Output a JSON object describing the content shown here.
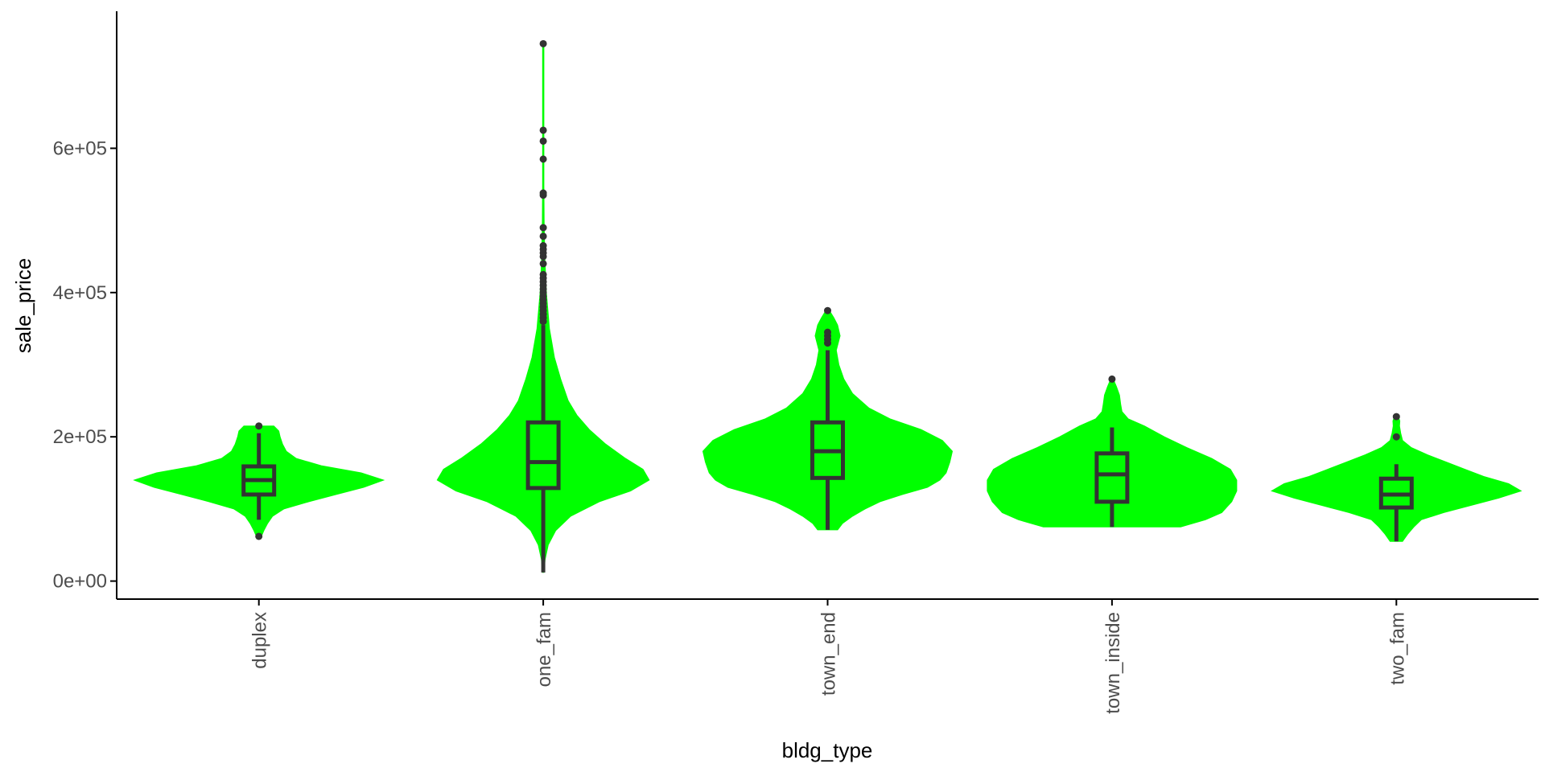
{
  "chart_data": {
    "type": "violin",
    "title": "",
    "xlabel": "bldg_type",
    "ylabel": "sale_price",
    "categories": [
      "duplex",
      "one_fam",
      "town_end",
      "town_inside",
      "two_fam"
    ],
    "y_ticks": [
      0,
      200000,
      400000,
      600000
    ],
    "y_tick_labels": [
      "0e+00",
      "2e+05",
      "4e+05",
      "6e+05"
    ],
    "ylim": [
      -25000,
      790000
    ],
    "grid": false,
    "legend": "none",
    "colors": {
      "violin_fill": "#00ff00",
      "box_stroke": "#333333",
      "outlier": "#333333",
      "axis": "#000000"
    },
    "violins": [
      {
        "category": "duplex",
        "min": 62000,
        "max": 215000,
        "profile": [
          [
            62000,
            0.02
          ],
          [
            70000,
            0.04
          ],
          [
            80000,
            0.07
          ],
          [
            90000,
            0.11
          ],
          [
            100000,
            0.2
          ],
          [
            110000,
            0.4
          ],
          [
            120000,
            0.62
          ],
          [
            130000,
            0.84
          ],
          [
            140000,
            1.0
          ],
          [
            150000,
            0.82
          ],
          [
            160000,
            0.5
          ],
          [
            170000,
            0.3
          ],
          [
            180000,
            0.22
          ],
          [
            190000,
            0.19
          ],
          [
            200000,
            0.17
          ],
          [
            208000,
            0.16
          ],
          [
            215000,
            0.12
          ]
        ],
        "box": {
          "q1": 120000,
          "median": 140000,
          "q3": 159000,
          "whisker_low": 85000,
          "whisker_high": 205000
        },
        "outliers": [
          62000,
          215000
        ]
      },
      {
        "category": "one_fam",
        "min": 12000,
        "max": 745000,
        "profile": [
          [
            12000,
            0.0
          ],
          [
            30000,
            0.015
          ],
          [
            50000,
            0.04
          ],
          [
            70000,
            0.1
          ],
          [
            90000,
            0.22
          ],
          [
            110000,
            0.45
          ],
          [
            125000,
            0.7
          ],
          [
            140000,
            0.85
          ],
          [
            155000,
            0.8
          ],
          [
            170000,
            0.66
          ],
          [
            190000,
            0.5
          ],
          [
            210000,
            0.37
          ],
          [
            230000,
            0.27
          ],
          [
            250000,
            0.2
          ],
          [
            280000,
            0.14
          ],
          [
            310000,
            0.09
          ],
          [
            350000,
            0.05
          ],
          [
            400000,
            0.025
          ],
          [
            450000,
            0.012
          ],
          [
            500000,
            0.007
          ],
          [
            550000,
            0.004
          ],
          [
            600000,
            0.002
          ],
          [
            650000,
            0.001
          ],
          [
            700000,
            0.0005
          ],
          [
            745000,
            0.0
          ]
        ],
        "box": {
          "q1": 129000,
          "median": 165000,
          "q3": 220000,
          "whisker_low": 12000,
          "whisker_high": 355000
        },
        "outliers": [
          360000,
          365000,
          370000,
          375000,
          380000,
          385000,
          390000,
          395000,
          400000,
          405000,
          410000,
          415000,
          420000,
          425000,
          440000,
          450000,
          455000,
          460000,
          465000,
          478000,
          490000,
          535000,
          538000,
          585000,
          610000,
          625000,
          745000
        ]
      },
      {
        "category": "town_end",
        "min": 71000,
        "max": 375000,
        "profile": [
          [
            71000,
            0.08
          ],
          [
            80000,
            0.12
          ],
          [
            90000,
            0.2
          ],
          [
            100000,
            0.3
          ],
          [
            110000,
            0.42
          ],
          [
            120000,
            0.6
          ],
          [
            130000,
            0.8
          ],
          [
            140000,
            0.9
          ],
          [
            150000,
            0.95
          ],
          [
            165000,
            0.98
          ],
          [
            180000,
            1.0
          ],
          [
            195000,
            0.92
          ],
          [
            210000,
            0.75
          ],
          [
            225000,
            0.5
          ],
          [
            240000,
            0.33
          ],
          [
            260000,
            0.2
          ],
          [
            280000,
            0.13
          ],
          [
            300000,
            0.09
          ],
          [
            320000,
            0.07
          ],
          [
            340000,
            0.1
          ],
          [
            355000,
            0.08
          ],
          [
            365000,
            0.05
          ],
          [
            375000,
            0.015
          ]
        ],
        "box": {
          "q1": 143000,
          "median": 180000,
          "q3": 220000,
          "whisker_low": 71000,
          "whisker_high": 320000
        },
        "outliers": [
          330000,
          335000,
          340000,
          345000,
          375000
        ]
      },
      {
        "category": "town_inside",
        "min": 75000,
        "max": 280000,
        "profile": [
          [
            75000,
            0.55
          ],
          [
            85000,
            0.75
          ],
          [
            95000,
            0.88
          ],
          [
            110000,
            0.96
          ],
          [
            125000,
            1.0
          ],
          [
            140000,
            1.0
          ],
          [
            155000,
            0.95
          ],
          [
            170000,
            0.8
          ],
          [
            185000,
            0.6
          ],
          [
            200000,
            0.42
          ],
          [
            215000,
            0.26
          ],
          [
            225000,
            0.13
          ],
          [
            235000,
            0.08
          ],
          [
            245000,
            0.07
          ],
          [
            258000,
            0.06
          ],
          [
            270000,
            0.035
          ],
          [
            280000,
            0.01
          ]
        ],
        "box": {
          "q1": 110000,
          "median": 148000,
          "q3": 177000,
          "whisker_low": 75000,
          "whisker_high": 213000
        },
        "outliers": [
          280000
        ]
      },
      {
        "category": "two_fam",
        "min": 55000,
        "max": 228000,
        "profile": [
          [
            55000,
            0.05
          ],
          [
            65000,
            0.09
          ],
          [
            75000,
            0.14
          ],
          [
            85000,
            0.2
          ],
          [
            95000,
            0.38
          ],
          [
            105000,
            0.6
          ],
          [
            115000,
            0.82
          ],
          [
            125000,
            1.0
          ],
          [
            135000,
            0.9
          ],
          [
            145000,
            0.7
          ],
          [
            155000,
            0.55
          ],
          [
            165000,
            0.4
          ],
          [
            175000,
            0.25
          ],
          [
            185000,
            0.12
          ],
          [
            195000,
            0.05
          ],
          [
            205000,
            0.035
          ],
          [
            215000,
            0.025
          ],
          [
            222000,
            0.028
          ],
          [
            228000,
            0.015
          ]
        ],
        "box": {
          "q1": 102000,
          "median": 120000,
          "q3": 142000,
          "whisker_low": 55000,
          "whisker_high": 162000
        },
        "outliers": [
          200000,
          228000
        ]
      }
    ]
  }
}
